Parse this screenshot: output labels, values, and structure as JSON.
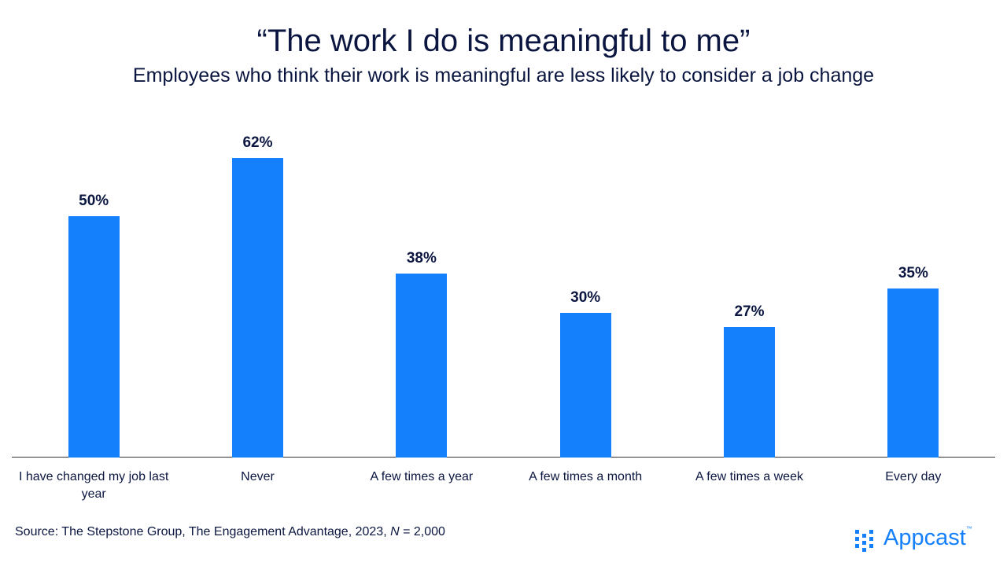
{
  "chart_data": {
    "type": "bar",
    "title": "“The work I do is meaningful to me”",
    "subtitle": "Employees who think their work is meaningful are less likely to consider a job change",
    "categories": [
      "I have changed my job last year",
      "Never",
      "A few times a year",
      "A few times a month",
      "A few times a week",
      "Every day"
    ],
    "values": [
      50,
      62,
      38,
      30,
      27,
      35
    ],
    "value_labels": [
      "50%",
      "62%",
      "38%",
      "30%",
      "27%",
      "35%"
    ],
    "color": "#1580fb",
    "source": {
      "prefix": "Source: The Stepstone Group, The Engagement Advantage, 2023, ",
      "italic": "N",
      "suffix": " = 2,000"
    },
    "logo": {
      "text": "Appcast",
      "mark": "™"
    }
  }
}
